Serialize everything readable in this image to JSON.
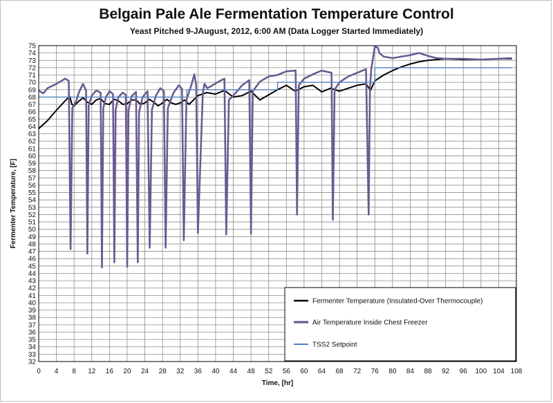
{
  "chart_data": {
    "type": "line",
    "title": "Belgain Pale Ale Fermentation Temperature Control",
    "subtitle": "Yeast Pitched 9-JAugust, 2012, 6:00 AM (Data Logger Started Immediately)",
    "xlabel": "Time, [hr]",
    "ylabel": "Fermenter Temperature, [F]",
    "xlim": [
      0,
      108
    ],
    "ylim": [
      32,
      75
    ],
    "x_ticks": [
      0,
      4,
      8,
      12,
      16,
      20,
      24,
      28,
      32,
      36,
      40,
      44,
      48,
      52,
      56,
      60,
      64,
      68,
      72,
      76,
      80,
      84,
      88,
      92,
      96,
      100,
      104,
      108
    ],
    "y_ticks": [
      32,
      33,
      34,
      35,
      36,
      37,
      38,
      39,
      40,
      41,
      42,
      43,
      44,
      45,
      46,
      47,
      48,
      49,
      50,
      51,
      52,
      53,
      54,
      55,
      56,
      57,
      58,
      59,
      60,
      61,
      62,
      63,
      64,
      65,
      66,
      67,
      68,
      69,
      70,
      71,
      72,
      73,
      74,
      75
    ],
    "grid": true,
    "legend_position": "bottom-right",
    "series": [
      {
        "name": "Fermenter Temperature (Insulated-Over Thermocouple)",
        "color": "#000000",
        "x": [
          0,
          2,
          4,
          6,
          7,
          7.5,
          8,
          9,
          10,
          11,
          12,
          13,
          14,
          15,
          16,
          17,
          18,
          19,
          20,
          21,
          22,
          23,
          24,
          25,
          26,
          27,
          28,
          29,
          30,
          31,
          32,
          33,
          34,
          36,
          38,
          40,
          42,
          44,
          46,
          48,
          50,
          52,
          54,
          56,
          58,
          60,
          62,
          64,
          66,
          68,
          70,
          72,
          74,
          75,
          76,
          78,
          80,
          82,
          84,
          86,
          88,
          90,
          92,
          96,
          100,
          104,
          107
        ],
        "y": [
          63.7,
          64.8,
          66.2,
          67.5,
          68.1,
          67.0,
          66.8,
          67.4,
          67.9,
          67.3,
          67.0,
          67.6,
          67.8,
          67.1,
          67.0,
          67.7,
          67.5,
          67.0,
          67.1,
          67.6,
          67.6,
          67.0,
          67.2,
          67.7,
          67.3,
          66.8,
          67.2,
          67.7,
          67.2,
          67.0,
          67.2,
          67.6,
          67.0,
          68.2,
          68.6,
          68.4,
          68.9,
          68.0,
          68.2,
          68.8,
          67.6,
          68.3,
          69.0,
          69.6,
          68.8,
          69.4,
          69.6,
          68.7,
          69.2,
          68.8,
          69.2,
          69.6,
          69.8,
          68.9,
          70.2,
          71.0,
          71.6,
          72.1,
          72.5,
          72.8,
          73.0,
          73.1,
          73.2,
          73.1,
          73.1,
          73.2,
          73.2
        ]
      },
      {
        "name": "Air Temperature Inside Chest Freezer",
        "color": "#6B5A91",
        "x": [
          0,
          1,
          2,
          4,
          6,
          6.8,
          7.2,
          7.6,
          8.5,
          9,
          10,
          10.7,
          11.0,
          11.3,
          12,
          13,
          14,
          14.3,
          14.6,
          15.2,
          16,
          16.8,
          17.1,
          17.4,
          18,
          19,
          19.7,
          20.0,
          20.3,
          21,
          22,
          22.4,
          22.7,
          23.5,
          24.6,
          25.1,
          25.6,
          26.5,
          27.5,
          28.3,
          28.7,
          29.2,
          30.5,
          31.7,
          32.4,
          32.8,
          33.4,
          34.5,
          35.2,
          35.6,
          36.0,
          37.1,
          37.5,
          38.1,
          39,
          41,
          42.0,
          42.4,
          43.0,
          44,
          46,
          47.6,
          48.0,
          48.4,
          50,
          52,
          54,
          56,
          58.1,
          58.4,
          58.8,
          60,
          62,
          64,
          66.2,
          66.5,
          66.9,
          68,
          70,
          72,
          74,
          74.6,
          74.9,
          75.2,
          76,
          76.7,
          77,
          78,
          80,
          82,
          84,
          86,
          88,
          90,
          92,
          96,
          100,
          104,
          107
        ],
        "y": [
          68.9,
          68.5,
          69.2,
          69.8,
          70.5,
          70.2,
          47.3,
          66.5,
          67.5,
          68.5,
          69.8,
          68.9,
          46.7,
          66.8,
          68.2,
          68.9,
          68.6,
          44.8,
          66.5,
          68.0,
          68.8,
          68.4,
          45.5,
          66.3,
          68.0,
          68.6,
          68.3,
          44.9,
          66.2,
          68.1,
          68.7,
          45.5,
          66.0,
          68.0,
          68.8,
          47.5,
          66.3,
          68.2,
          69.2,
          68.8,
          47.5,
          66.5,
          68.6,
          69.6,
          69.1,
          48.5,
          67.6,
          69.6,
          71.1,
          69.6,
          49.5,
          68.6,
          69.8,
          69.2,
          69.5,
          70.2,
          70.5,
          49.3,
          67.6,
          68.2,
          69.6,
          70.3,
          49.4,
          68.8,
          70.1,
          70.8,
          71.0,
          71.5,
          71.6,
          52.0,
          69.6,
          70.5,
          71.1,
          71.6,
          71.3,
          51.3,
          69.0,
          70.0,
          70.8,
          71.3,
          71.8,
          52.0,
          69.2,
          71.8,
          74.9,
          74.7,
          74.0,
          73.5,
          73.3,
          73.5,
          73.7,
          74.0,
          73.6,
          73.3,
          73.2,
          73.2,
          73.1,
          73.2,
          73.3
        ]
      },
      {
        "name": "TSS2 Setpoint",
        "color": "#4F81BD",
        "x": [
          0,
          33.5,
          33.5,
          54,
          54,
          74,
          74,
          76,
          76,
          107
        ],
        "y": [
          68,
          68,
          69,
          69,
          70,
          70,
          70,
          70,
          72,
          72
        ]
      }
    ]
  }
}
